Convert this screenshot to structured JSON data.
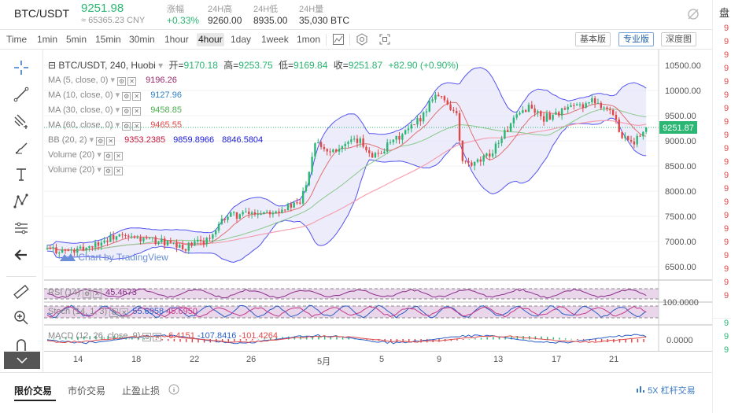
{
  "ticker": {
    "pair": "BTC/USDT",
    "last_price": "9251.98",
    "cny": "≈ 65365.23 CNY",
    "stats": [
      {
        "label": "涨幅",
        "value": "+0.33%",
        "up": true
      },
      {
        "label": "24H高",
        "value": "9260.00"
      },
      {
        "label": "24H低",
        "value": "8935.00"
      },
      {
        "label": "24H量",
        "value": "35,030 BTC"
      }
    ]
  },
  "right_strip": {
    "title": "盘",
    "values": [
      "9",
      "9",
      "9",
      "9",
      "9",
      "9",
      "9",
      "9",
      "9",
      "9",
      "9",
      "9",
      "9",
      "9",
      "9",
      "9",
      "9",
      "9",
      "9",
      "9",
      "9",
      "9",
      "9",
      "9"
    ]
  },
  "toolbar": {
    "timeframes": [
      "Time",
      "1min",
      "5min",
      "15min",
      "30min",
      "1hour",
      "4hour",
      "1day",
      "1week",
      "1mon"
    ],
    "active_timeframe": "4hour",
    "views": [
      "基本版",
      "专业版",
      "深度图"
    ],
    "active_view": "专业版"
  },
  "legend": {
    "symbol": "BTC/USDT, 240, Huobi",
    "open_label": "开=",
    "open": "9170.18",
    "high_label": "高=",
    "high": "9253.75",
    "low_label": "低=",
    "low": "9169.84",
    "close_label": "收=",
    "close": "9251.87",
    "change": "+82.90 (+0.90%)"
  },
  "indicators": [
    {
      "label": "MA (5, close, 0)",
      "values": [
        "9196.26"
      ],
      "colors": [
        "#a0286e"
      ]
    },
    {
      "label": "MA (10, close, 0)",
      "values": [
        "9127.96"
      ],
      "colors": [
        "#2b7fc7"
      ]
    },
    {
      "label": "MA (30, close, 0)",
      "values": [
        "9458.85"
      ],
      "colors": [
        "#4caf50"
      ]
    },
    {
      "label": "MA (60, close, 0)",
      "values": [
        "9465.55"
      ],
      "colors": [
        "#e04848"
      ]
    },
    {
      "label": "BB (20, 2)",
      "values": [
        "9353.2385",
        "9859.8966",
        "8846.5804"
      ],
      "colors": [
        "#c0183c",
        "#1b1bd8",
        "#1b1bd8"
      ]
    },
    {
      "label": "Volume (20)",
      "values": [],
      "colors": []
    },
    {
      "label": "Volume (20)",
      "values": [],
      "colors": []
    }
  ],
  "watermark": "Chart by TradingView",
  "price_axis": {
    "ticks": [
      "10500.00",
      "10000.00",
      "9500.00",
      "9000.00",
      "8500.00",
      "8000.00",
      "7500.00",
      "7000.00",
      "6500.00"
    ],
    "current": "9251.87"
  },
  "rsi": {
    "label": "RSI (14)",
    "value": "45.4673",
    "axis": "100.0000"
  },
  "stoch": {
    "label": "Stoch (14, 1, 3)",
    "k": "55.6958",
    "d": "45.6950"
  },
  "macd": {
    "label": "MACD (12, 26, close, 9)",
    "hist": "-6.4151",
    "macd": "-107.8416",
    "signal": "-101.4264",
    "axis": "0.0000"
  },
  "x_axis": [
    "14",
    "18",
    "22",
    "26",
    "5月",
    "5",
    "9",
    "13",
    "17",
    "21"
  ],
  "bottom": {
    "tabs": [
      "限价交易",
      "市价交易",
      "止盈止损"
    ],
    "active_tab": "限价交易",
    "info_icon": "info-icon",
    "lever": "5X 杠杆交易"
  },
  "colors": {
    "up": "#2bb673",
    "down": "#e04848",
    "bb_fill": "#e6e6fa",
    "bb_line": "#5555ee",
    "blue_link": "#3b78c5"
  }
}
